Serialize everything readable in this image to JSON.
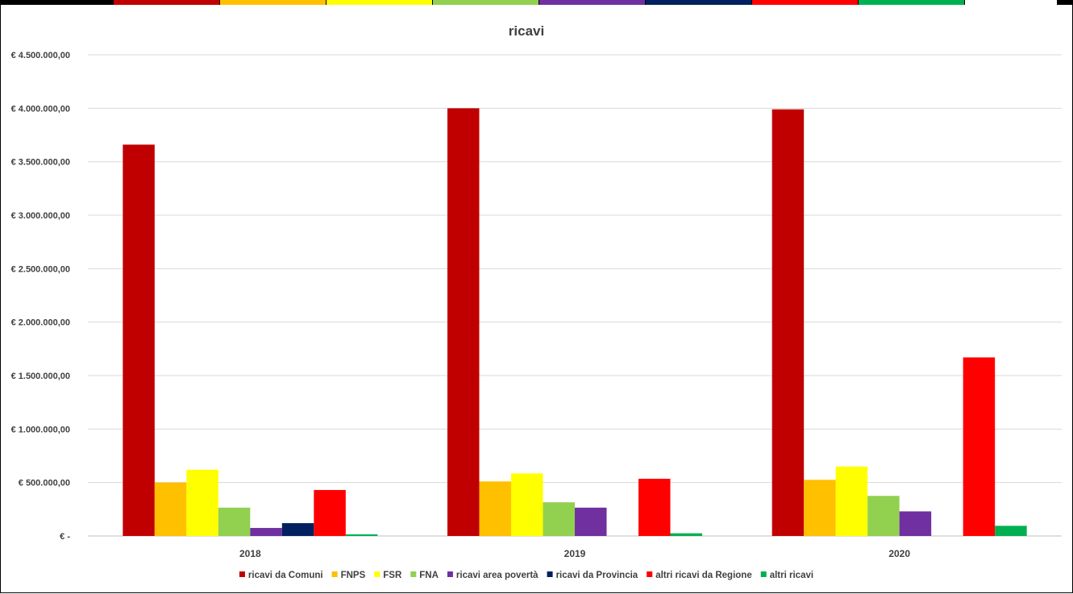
{
  "top_strip_colors": [
    "#000000",
    "#c00000",
    "#ffc000",
    "#ffff00",
    "#92d050",
    "#7030a0",
    "#002060",
    "#ff0000",
    "#00b050",
    "#ffffff"
  ],
  "chart_data": {
    "type": "bar",
    "title": "ricavi",
    "categories": [
      "2018",
      "2019",
      "2020"
    ],
    "ylim": [
      0,
      4500000
    ],
    "ytick_values": [
      0,
      500000,
      1000000,
      1500000,
      2000000,
      2500000,
      3000000,
      3500000,
      4000000,
      4500000
    ],
    "ytick_labels": [
      "€ -",
      "€ 500.000,00",
      "€ 1.000.000,00",
      "€ 1.500.000,00",
      "€ 2.000.000,00",
      "€ 2.500.000,00",
      "€ 3.000.000,00",
      "€ 3.500.000,00",
      "€ 4.000.000,00",
      "€ 4.500.000,00"
    ],
    "grid": true,
    "legend_position": "bottom",
    "series": [
      {
        "name": "ricavi da Comuni",
        "color": "#c00000",
        "values": [
          3660000,
          4000000,
          3990000
        ]
      },
      {
        "name": "FNPS",
        "color": "#ffc000",
        "values": [
          500000,
          510000,
          525000
        ]
      },
      {
        "name": "FSR",
        "color": "#ffff00",
        "values": [
          620000,
          585000,
          650000
        ]
      },
      {
        "name": "FNA",
        "color": "#92d050",
        "values": [
          265000,
          315000,
          375000
        ]
      },
      {
        "name": "ricavi area povertà",
        "color": "#7030a0",
        "values": [
          75000,
          265000,
          230000
        ]
      },
      {
        "name": "ricavi da Provincia",
        "color": "#002060",
        "values": [
          120000,
          0,
          0
        ]
      },
      {
        "name": "altri ricavi da Regione",
        "color": "#ff0000",
        "values": [
          430000,
          535000,
          1670000
        ]
      },
      {
        "name": "altri ricavi",
        "color": "#00b050",
        "values": [
          15000,
          25000,
          95000
        ]
      }
    ]
  }
}
